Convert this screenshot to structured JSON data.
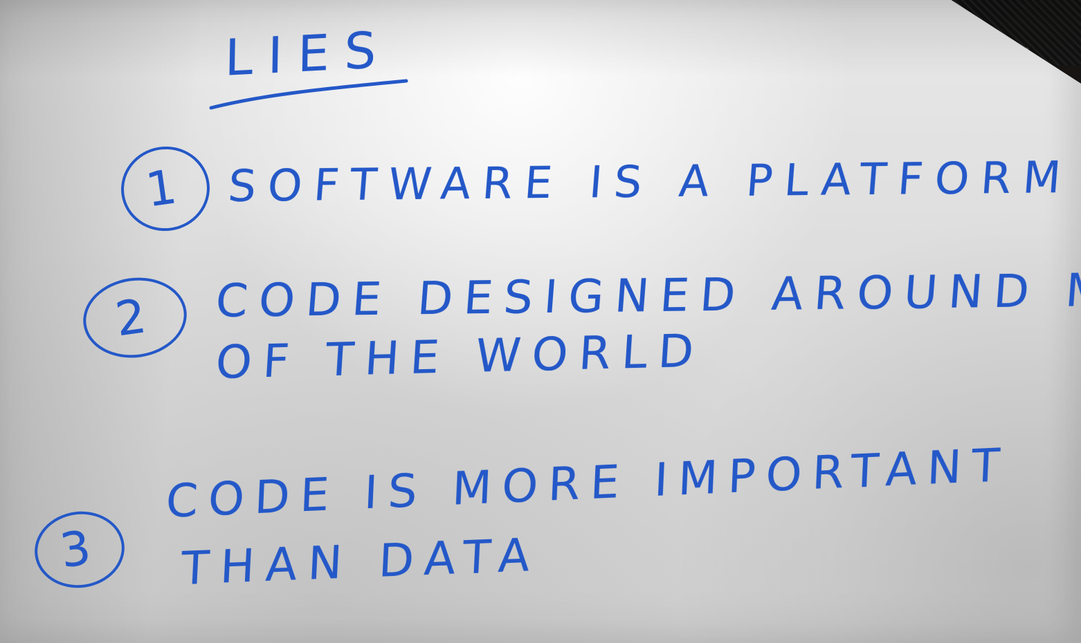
{
  "note": {
    "title": "LIES",
    "items": [
      {
        "number": "1",
        "lines": [
          "SOFTWARE IS A PLATFORM"
        ]
      },
      {
        "number": "2",
        "lines": [
          "CODE DESIGNED AROUND MODEL",
          "OF THE WORLD"
        ]
      },
      {
        "number": "3",
        "lines": [
          "CODE IS MORE IMPORTANT",
          "THAN DATA"
        ]
      }
    ]
  },
  "colors": {
    "ink": "#2458c8",
    "paper": "#e0e0e0",
    "background": "#0e0d0c"
  }
}
